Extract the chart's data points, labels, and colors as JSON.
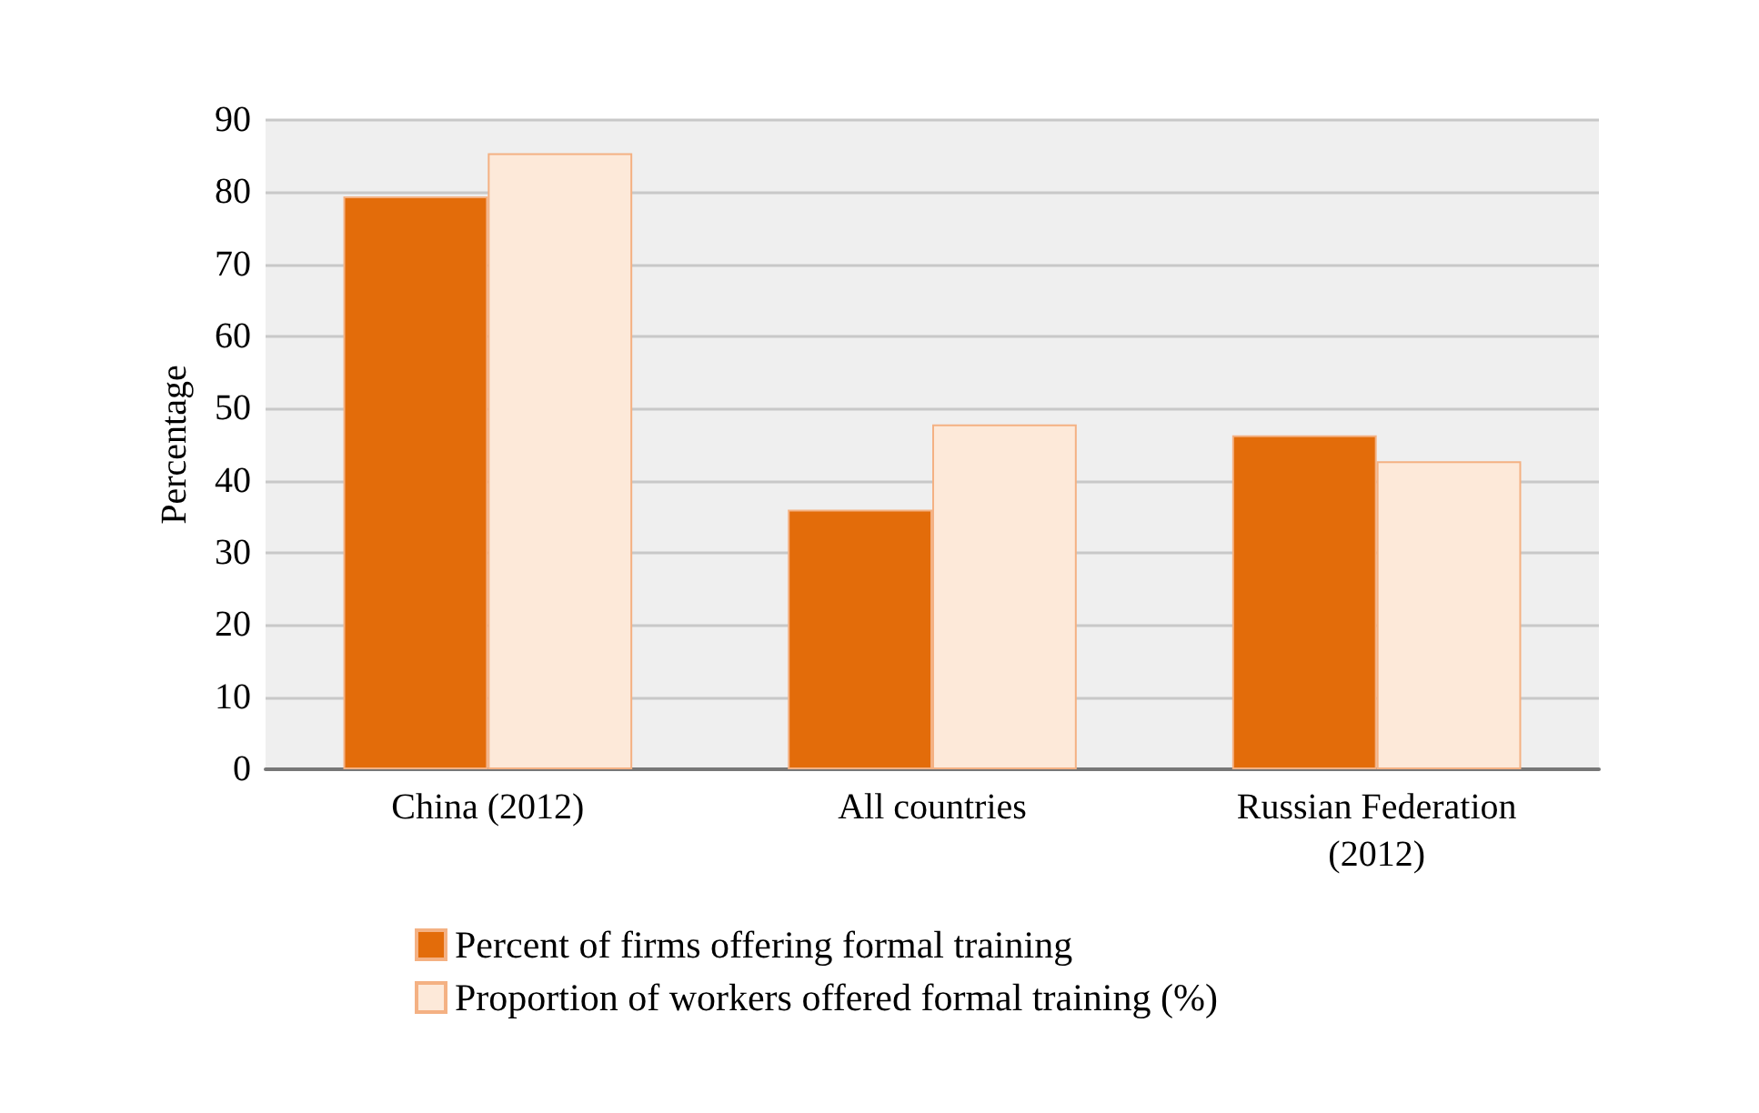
{
  "chart_data": {
    "type": "bar",
    "ylabel": "Percentage",
    "categories": [
      "China (2012)",
      "All countries",
      "Russian Federation\n(2012)"
    ],
    "series": [
      {
        "name": "Percent of firms offering formal training",
        "color": "#e36c0a",
        "values": [
          79.4,
          36,
          46.3
        ]
      },
      {
        "name": "Proportion of workers offered formal training (%)",
        "color": "#fde9d9",
        "values": [
          85.4,
          47.8,
          42.7
        ]
      }
    ],
    "ylim": [
      0,
      90
    ],
    "yticks": [
      0,
      10,
      20,
      30,
      40,
      50,
      60,
      70,
      80,
      90
    ],
    "grid": "y",
    "legend": "bottom"
  }
}
